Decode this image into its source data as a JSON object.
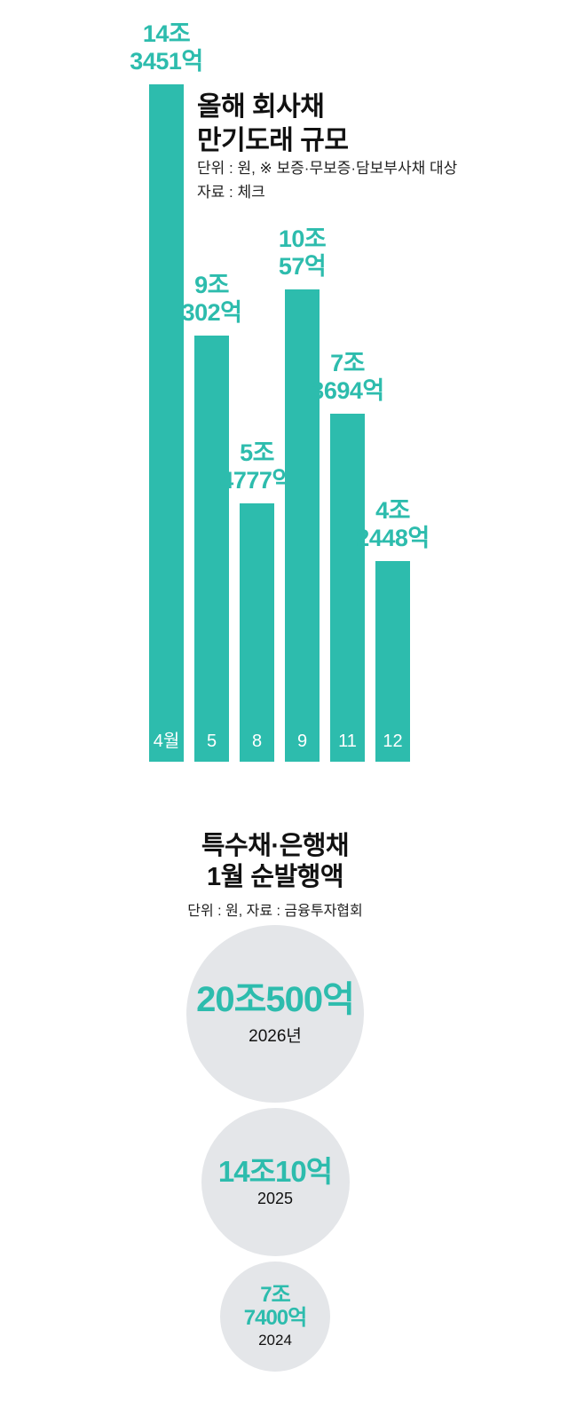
{
  "colors": {
    "accent_teal": "#2dbcad",
    "circle_gray": "#e4e6e9",
    "text_dark": "#111111",
    "bar_inner_label": "#ffffff"
  },
  "chart_data": [
    {
      "type": "bar",
      "title": "올해 회사채 만기도래 규모",
      "title_lines": [
        "올해 회사채",
        "만기도래 규모"
      ],
      "subtitle": "단위 : 원, ※ 보증·무보증·담보부사채 대상",
      "source": "자료 : 체크",
      "categories": [
        "4월",
        "5",
        "8",
        "9",
        "11",
        "12"
      ],
      "values": [
        14.3451,
        9.0302,
        5.4777,
        10.0057,
        7.3694,
        4.2448
      ],
      "value_labels": [
        [
          "14조",
          "3451억"
        ],
        [
          "9조",
          "302억"
        ],
        [
          "5조",
          "4777억"
        ],
        [
          "10조",
          "57억"
        ],
        [
          "7조",
          "3694억"
        ],
        [
          "4조",
          "2448억"
        ]
      ],
      "bar_color": "#2dbcad",
      "ylim": [
        0,
        14.3451
      ],
      "grid": false,
      "legend": false
    },
    {
      "type": "proportional-circles",
      "title": "특수채·은행채 1월 순발행액",
      "title_lines": [
        "특수채·은행채",
        "1월 순발행액"
      ],
      "subtitle": "단위 : 원, 자료 : 금융투자협회",
      "circles": [
        {
          "label_lines": [
            "20조500억"
          ],
          "year": "2026년",
          "value": 20.05
        },
        {
          "label_lines": [
            "14조10억"
          ],
          "year": "2025",
          "value": 14.001
        },
        {
          "label_lines": [
            "7조",
            "7400억"
          ],
          "year": "2024",
          "value": 7.74
        }
      ],
      "circle_fill": "#e4e6e9",
      "value_color": "#2dbcad"
    }
  ]
}
